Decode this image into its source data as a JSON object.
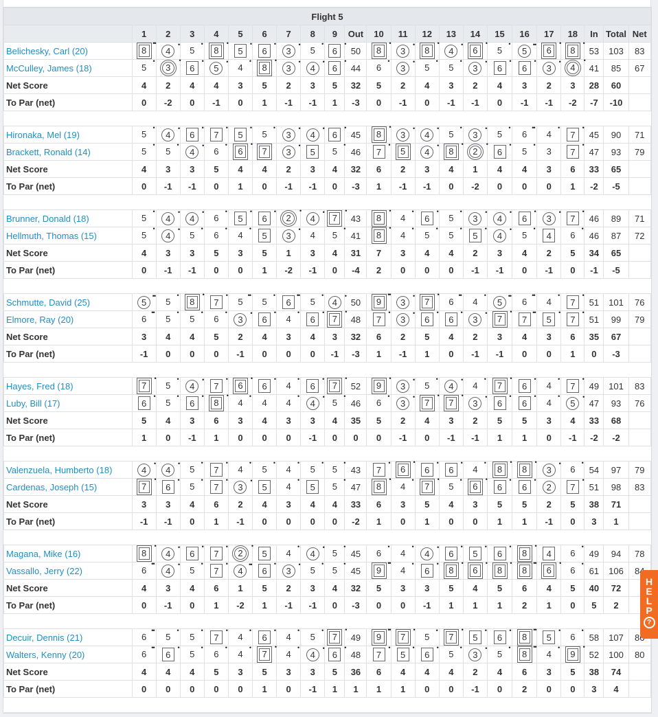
{
  "title": "Flight 5",
  "columns": [
    "1",
    "2",
    "3",
    "4",
    "5",
    "6",
    "7",
    "8",
    "9",
    "Out",
    "10",
    "11",
    "12",
    "13",
    "14",
    "15",
    "16",
    "17",
    "18",
    "In",
    "Total",
    "Net"
  ],
  "groups": [
    {
      "players": [
        {
          "name": "Belichesky, Carl (20)",
          "handicap": 20,
          "front": [
            8,
            4,
            5,
            8,
            5,
            6,
            3,
            5,
            6
          ],
          "out": 50,
          "back": [
            8,
            3,
            8,
            4,
            6,
            5,
            5,
            6,
            8
          ],
          "in": 53,
          "total": 103,
          "net": 83
        },
        {
          "name": "McCulley, James (18)",
          "handicap": 18,
          "front": [
            5,
            3,
            6,
            5,
            4,
            8,
            3,
            4,
            6
          ],
          "out": 44,
          "back": [
            6,
            3,
            5,
            5,
            3,
            6,
            6,
            3,
            4
          ],
          "in": 41,
          "total": 85,
          "net": 67
        }
      ],
      "net_score": {
        "label": "Net Score",
        "values": [
          4,
          2,
          4,
          4,
          3,
          5,
          2,
          3,
          5,
          32,
          5,
          2,
          4,
          3,
          2,
          4,
          3,
          2,
          3,
          28,
          60
        ]
      },
      "to_par": {
        "label": "To Par (net)",
        "values": [
          0,
          -2,
          0,
          -1,
          0,
          1,
          -1,
          -1,
          1,
          -3,
          0,
          -1,
          0,
          -1,
          -1,
          0,
          -1,
          -1,
          -2,
          -7,
          -10
        ]
      }
    },
    {
      "players": [
        {
          "name": "Hironaka, Mel (19)",
          "handicap": 19,
          "front": [
            5,
            4,
            6,
            7,
            5,
            5,
            3,
            4,
            6
          ],
          "out": 45,
          "back": [
            8,
            3,
            4,
            5,
            3,
            5,
            6,
            4,
            7
          ],
          "in": 45,
          "total": 90,
          "net": 71
        },
        {
          "name": "Brackett, Ronald (14)",
          "handicap": 14,
          "front": [
            5,
            5,
            4,
            6,
            6,
            7,
            3,
            5,
            5
          ],
          "out": 46,
          "back": [
            7,
            5,
            4,
            8,
            2,
            6,
            5,
            3,
            7
          ],
          "in": 47,
          "total": 93,
          "net": 79
        }
      ],
      "net_score": {
        "label": "Net Score",
        "values": [
          4,
          3,
          3,
          5,
          4,
          4,
          2,
          3,
          4,
          32,
          6,
          2,
          3,
          4,
          1,
          4,
          4,
          3,
          6,
          33,
          65
        ]
      },
      "to_par": {
        "label": "To Par (net)",
        "values": [
          0,
          -1,
          -1,
          0,
          1,
          0,
          -1,
          -1,
          0,
          -3,
          1,
          -1,
          -1,
          0,
          -2,
          0,
          0,
          0,
          1,
          -2,
          -5
        ]
      }
    },
    {
      "players": [
        {
          "name": "Brunner, Donald (18)",
          "handicap": 18,
          "front": [
            5,
            4,
            4,
            6,
            5,
            6,
            2,
            4,
            7
          ],
          "out": 43,
          "back": [
            8,
            4,
            6,
            5,
            3,
            4,
            6,
            3,
            7
          ],
          "in": 46,
          "total": 89,
          "net": 71
        },
        {
          "name": "Hellmuth, Thomas (15)",
          "handicap": 15,
          "front": [
            5,
            4,
            5,
            6,
            4,
            5,
            3,
            4,
            5
          ],
          "out": 41,
          "back": [
            8,
            4,
            5,
            5,
            5,
            4,
            5,
            4,
            6
          ],
          "in": 46,
          "total": 87,
          "net": 72
        }
      ],
      "net_score": {
        "label": "Net Score",
        "values": [
          4,
          3,
          3,
          5,
          3,
          5,
          1,
          3,
          4,
          31,
          7,
          3,
          4,
          4,
          2,
          3,
          4,
          2,
          5,
          34,
          65
        ]
      },
      "to_par": {
        "label": "To Par (net)",
        "values": [
          0,
          -1,
          -1,
          0,
          0,
          1,
          -2,
          -1,
          0,
          -4,
          2,
          0,
          0,
          0,
          -1,
          -1,
          0,
          -1,
          0,
          -1,
          -5
        ]
      }
    },
    {
      "players": [
        {
          "name": "Schmutte, David (25)",
          "handicap": 25,
          "front": [
            5,
            5,
            8,
            7,
            5,
            5,
            6,
            5,
            4
          ],
          "out": 50,
          "back": [
            9,
            3,
            7,
            6,
            4,
            5,
            6,
            4,
            7
          ],
          "in": 51,
          "total": 101,
          "net": 76
        },
        {
          "name": "Elmore, Ray (20)",
          "handicap": 20,
          "front": [
            6,
            5,
            5,
            6,
            3,
            6,
            4,
            6,
            7
          ],
          "out": 48,
          "back": [
            7,
            3,
            6,
            6,
            3,
            7,
            7,
            5,
            7
          ],
          "in": 51,
          "total": 99,
          "net": 79
        }
      ],
      "net_score": {
        "label": "Net Score",
        "values": [
          3,
          4,
          4,
          5,
          2,
          4,
          3,
          4,
          3,
          32,
          6,
          2,
          5,
          4,
          2,
          3,
          4,
          3,
          6,
          35,
          67
        ]
      },
      "to_par": {
        "label": "To Par (net)",
        "values": [
          -1,
          0,
          0,
          0,
          -1,
          0,
          0,
          0,
          -1,
          -3,
          1,
          -1,
          1,
          0,
          -1,
          -1,
          0,
          0,
          1,
          0,
          -3
        ]
      }
    },
    {
      "players": [
        {
          "name": "Hayes, Fred (18)",
          "handicap": 18,
          "front": [
            7,
            5,
            4,
            7,
            6,
            6,
            4,
            6,
            7
          ],
          "out": 52,
          "back": [
            9,
            3,
            5,
            4,
            4,
            7,
            6,
            4,
            7
          ],
          "in": 49,
          "total": 101,
          "net": 83
        },
        {
          "name": "Luby, Bill (17)",
          "handicap": 17,
          "front": [
            6,
            5,
            6,
            8,
            4,
            4,
            4,
            4,
            5
          ],
          "out": 46,
          "back": [
            6,
            3,
            7,
            7,
            3,
            6,
            6,
            4,
            5
          ],
          "in": 47,
          "total": 93,
          "net": 76
        }
      ],
      "net_score": {
        "label": "Net Score",
        "values": [
          5,
          4,
          3,
          6,
          3,
          4,
          3,
          3,
          4,
          35,
          5,
          2,
          4,
          3,
          2,
          5,
          5,
          3,
          4,
          33,
          68
        ]
      },
      "to_par": {
        "label": "To Par (net)",
        "values": [
          1,
          0,
          -1,
          1,
          0,
          0,
          0,
          -1,
          0,
          0,
          0,
          -1,
          0,
          -1,
          -1,
          1,
          1,
          0,
          -1,
          -2,
          -2
        ]
      }
    },
    {
      "players": [
        {
          "name": "Valenzuela, Humberto (18)",
          "handicap": 18,
          "front": [
            4,
            4,
            5,
            7,
            4,
            5,
            4,
            5,
            5
          ],
          "out": 43,
          "back": [
            7,
            6,
            6,
            6,
            4,
            8,
            8,
            3,
            6
          ],
          "in": 54,
          "total": 97,
          "net": 79
        },
        {
          "name": "Cardenas, Joseph (15)",
          "handicap": 15,
          "front": [
            7,
            6,
            5,
            7,
            3,
            5,
            4,
            5,
            5
          ],
          "out": 47,
          "back": [
            8,
            4,
            7,
            5,
            6,
            6,
            6,
            2,
            7
          ],
          "in": 51,
          "total": 98,
          "net": 83
        }
      ],
      "net_score": {
        "label": "Net Score",
        "values": [
          3,
          3,
          4,
          6,
          2,
          4,
          3,
          4,
          4,
          33,
          6,
          3,
          5,
          4,
          3,
          5,
          5,
          2,
          5,
          38,
          71
        ]
      },
      "to_par": {
        "label": "To Par (net)",
        "values": [
          -1,
          -1,
          0,
          1,
          -1,
          0,
          0,
          0,
          0,
          -2,
          1,
          0,
          1,
          0,
          0,
          1,
          1,
          -1,
          0,
          3,
          1
        ]
      }
    },
    {
      "players": [
        {
          "name": "Magana, Mike (16)",
          "handicap": 16,
          "front": [
            8,
            4,
            6,
            7,
            2,
            5,
            4,
            4,
            5
          ],
          "out": 45,
          "back": [
            6,
            4,
            4,
            6,
            5,
            6,
            8,
            4,
            6
          ],
          "in": 49,
          "total": 94,
          "net": 78
        },
        {
          "name": "Vassallo, Jerry (22)",
          "handicap": 22,
          "front": [
            6,
            4,
            5,
            7,
            4,
            6,
            3,
            5,
            5
          ],
          "out": 45,
          "back": [
            9,
            4,
            6,
            8,
            6,
            8,
            8,
            6,
            6
          ],
          "in": 61,
          "total": 106,
          "net": 84
        }
      ],
      "net_score": {
        "label": "Net Score",
        "values": [
          4,
          3,
          4,
          6,
          1,
          5,
          2,
          3,
          4,
          32,
          5,
          3,
          3,
          5,
          4,
          5,
          6,
          4,
          5,
          40,
          72
        ]
      },
      "to_par": {
        "label": "To Par (net)",
        "values": [
          0,
          -1,
          0,
          1,
          -2,
          1,
          -1,
          -1,
          0,
          -3,
          0,
          0,
          -1,
          1,
          1,
          1,
          2,
          1,
          0,
          5,
          2
        ]
      }
    },
    {
      "players": [
        {
          "name": "Decuir, Dennis (21)",
          "handicap": 21,
          "front": [
            6,
            5,
            5,
            7,
            4,
            6,
            4,
            5,
            7
          ],
          "out": 49,
          "back": [
            9,
            7,
            5,
            7,
            5,
            6,
            8,
            5,
            6
          ],
          "in": 58,
          "total": 107,
          "net": 86
        },
        {
          "name": "Walters, Kenny (20)",
          "handicap": 20,
          "front": [
            6,
            6,
            5,
            6,
            4,
            7,
            4,
            4,
            6
          ],
          "out": 48,
          "back": [
            7,
            5,
            6,
            5,
            3,
            5,
            8,
            4,
            9
          ],
          "in": 52,
          "total": 100,
          "net": 80
        }
      ],
      "net_score": {
        "label": "Net Score",
        "values": [
          4,
          4,
          4,
          5,
          3,
          5,
          3,
          3,
          5,
          36,
          6,
          4,
          4,
          4,
          2,
          4,
          6,
          3,
          5,
          38,
          74
        ]
      },
      "to_par": {
        "label": "To Par (net)",
        "values": [
          0,
          0,
          0,
          0,
          0,
          1,
          0,
          -1,
          1,
          1,
          1,
          1,
          0,
          0,
          -1,
          0,
          2,
          0,
          0,
          3,
          4
        ]
      }
    }
  ],
  "help": {
    "letters": [
      "H",
      "E",
      "L",
      "P"
    ],
    "icon": "question-circle-icon",
    "color": "#f26b22"
  }
}
